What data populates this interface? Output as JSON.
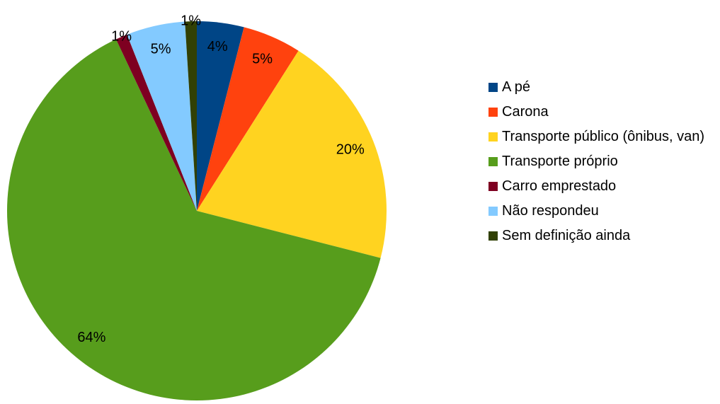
{
  "chart_data": {
    "type": "pie",
    "categories": [
      "A pé",
      "Carona",
      "Transporte público (ônibus, van)",
      "Transporte próprio",
      "Carro emprestado",
      "Não respondeu",
      "Sem definição ainda"
    ],
    "values": [
      4,
      5,
      20,
      64,
      1,
      5,
      1
    ],
    "value_labels": [
      "4%",
      "5%",
      "20%",
      "64%",
      "1%",
      "5%",
      "1%"
    ],
    "colors": [
      "#004586",
      "#ff420e",
      "#ffd320",
      "#579d1c",
      "#7e0021",
      "#83caff",
      "#314004"
    ],
    "legend": "right"
  }
}
